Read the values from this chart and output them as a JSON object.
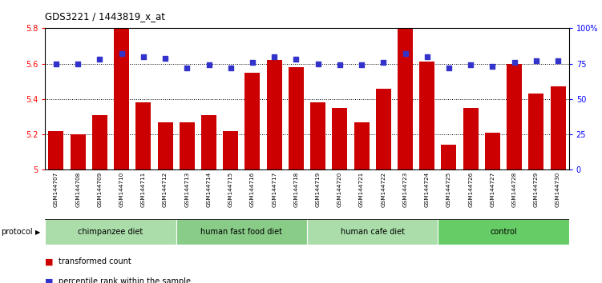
{
  "title": "GDS3221 / 1443819_x_at",
  "samples": [
    "GSM144707",
    "GSM144708",
    "GSM144709",
    "GSM144710",
    "GSM144711",
    "GSM144712",
    "GSM144713",
    "GSM144714",
    "GSM144715",
    "GSM144716",
    "GSM144717",
    "GSM144718",
    "GSM144719",
    "GSM144720",
    "GSM144721",
    "GSM144722",
    "GSM144723",
    "GSM144724",
    "GSM144725",
    "GSM144726",
    "GSM144727",
    "GSM144728",
    "GSM144729",
    "GSM144730"
  ],
  "transformed_count": [
    5.22,
    5.2,
    5.31,
    5.8,
    5.38,
    5.27,
    5.27,
    5.31,
    5.22,
    5.55,
    5.62,
    5.58,
    5.38,
    5.35,
    5.27,
    5.46,
    5.8,
    5.61,
    5.14,
    5.35,
    5.21,
    5.6,
    5.43,
    5.47
  ],
  "percentile_rank": [
    75,
    75,
    78,
    82,
    80,
    79,
    72,
    74,
    72,
    76,
    80,
    78,
    75,
    74,
    74,
    76,
    82,
    80,
    72,
    74,
    73,
    76,
    77,
    77
  ],
  "ylim_left": [
    5.0,
    5.8
  ],
  "ylim_right": [
    0,
    100
  ],
  "yticks_left": [
    5.0,
    5.2,
    5.4,
    5.6,
    5.8
  ],
  "ytick_labels_left": [
    "5",
    "5.2",
    "5.4",
    "5.6",
    "5.8"
  ],
  "yticks_right": [
    0,
    25,
    50,
    75,
    100
  ],
  "ytick_labels_right": [
    "0",
    "25",
    "50",
    "75",
    "100%"
  ],
  "bar_color": "#cc0000",
  "dot_color": "#3333cc",
  "background_color": "#ffffff",
  "groups": [
    {
      "label": "chimpanzee diet",
      "start": 0,
      "end": 6,
      "color": "#aaddaa"
    },
    {
      "label": "human fast food diet",
      "start": 6,
      "end": 12,
      "color": "#88cc88"
    },
    {
      "label": "human cafe diet",
      "start": 12,
      "end": 18,
      "color": "#aaddaa"
    },
    {
      "label": "control",
      "start": 18,
      "end": 24,
      "color": "#66cc66"
    }
  ],
  "protocol_label": "protocol",
  "legend_bar_label": "transformed count",
  "legend_dot_label": "percentile rank within the sample",
  "tick_area_color": "#cccccc",
  "bar_width": 0.7
}
